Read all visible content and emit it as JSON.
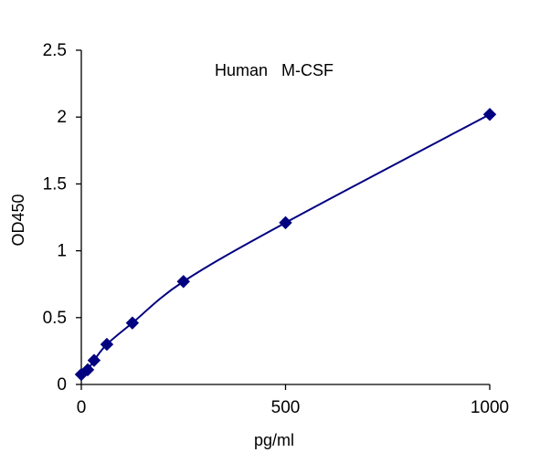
{
  "chart_data": {
    "type": "line",
    "title": "Human   M-CSF",
    "xlabel": "pg/ml",
    "ylabel": "OD450",
    "xlim": [
      0,
      1000
    ],
    "ylim": [
      0,
      2.5
    ],
    "xticks": [
      "0",
      "500",
      "1000"
    ],
    "yticks": [
      "0",
      "0.5",
      "1",
      "1.5",
      "2",
      "2.5"
    ],
    "grid": false,
    "legend": "none",
    "marker": "diamond",
    "series": [
      {
        "x": [
          0,
          15.6,
          31.2,
          62.5,
          125,
          250,
          500,
          1000
        ],
        "y": [
          0.075,
          0.11,
          0.18,
          0.3,
          0.46,
          0.77,
          1.21,
          2.02
        ]
      }
    ],
    "colors": {
      "series": "#000080",
      "axis": "#000000"
    }
  }
}
